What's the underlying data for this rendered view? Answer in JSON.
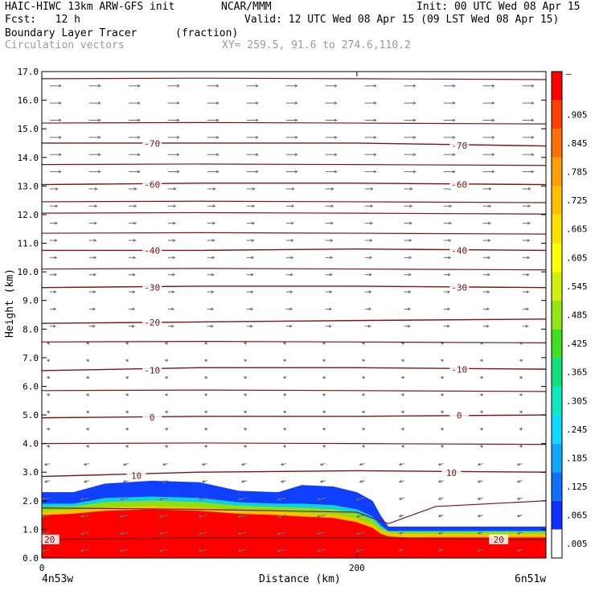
{
  "header": {
    "model": "HAIC-HIWC 13km ARW-GFS init",
    "org": "NCAR/MMM",
    "init": "Init: 00 UTC Wed 08 Apr 15",
    "fcst": "Fcst:   12 h",
    "valid": "Valid: 12 UTC Wed 08 Apr 15 (09 LST Wed 08 Apr 15)",
    "field": "Boundary Layer Tracer",
    "units": "(fraction)",
    "overlay": "Circulation vectors",
    "xy": "XY= 259.5, 91.6 to 274.6,110.2"
  },
  "chart_data": {
    "type": "heatmap",
    "description_fields": [
      "boundary layer tracer (fraction)",
      "temperature contours",
      "circulation vectors"
    ],
    "xlabel": "Distance (km)",
    "ylabel": "Height (km)",
    "xlim": [
      0,
      320
    ],
    "ylim": [
      0.0,
      17.0
    ],
    "x_ticks": [
      {
        "value": 0,
        "label": "0"
      },
      {
        "value": 200,
        "label": "200"
      }
    ],
    "x_end_labels": {
      "left": "4n53w",
      "right": "6n51w"
    },
    "y_ticks": [
      "0.0",
      "1.0",
      "2.0",
      "3.0",
      "4.0",
      "5.0",
      "6.0",
      "7.0",
      "8.0",
      "9.0",
      "10.0",
      "11.0",
      "12.0",
      "13.0",
      "14.0",
      "15.0",
      "16.0",
      "17.0"
    ],
    "colorbar": {
      "labels": [
        ".005",
        ".065",
        ".125",
        ".185",
        ".245",
        ".305",
        ".365",
        ".425",
        ".485",
        ".545",
        ".605",
        ".665",
        ".725",
        ".785",
        ".845",
        ".905"
      ],
      "top_label": "–",
      "colors": [
        "#ffffff",
        "#1030ff",
        "#1070ff",
        "#10a8ff",
        "#10d8ff",
        "#10e8c0",
        "#10e080",
        "#40e020",
        "#90e810",
        "#d0f010",
        "#ffff00",
        "#ffe000",
        "#ffc000",
        "#ffa000",
        "#ff7000",
        "#ff4000",
        "#ff0000"
      ]
    },
    "tracer_profile": {
      "x_km": [
        0,
        20,
        40,
        70,
        100,
        125,
        150,
        165,
        185,
        200,
        210,
        215,
        220,
        232,
        260,
        300,
        320
      ],
      "top_km": [
        2.3,
        2.3,
        2.6,
        2.7,
        2.65,
        2.35,
        2.3,
        2.55,
        2.5,
        2.3,
        2.0,
        1.5,
        1.1,
        1.1,
        1.1,
        1.1,
        1.1
      ],
      "green_km": [
        1.9,
        1.9,
        2.1,
        2.15,
        2.1,
        1.95,
        1.9,
        1.9,
        1.85,
        1.7,
        1.45,
        1.15,
        0.95,
        0.95,
        0.95,
        0.95,
        0.95
      ],
      "red_km": [
        1.5,
        1.55,
        1.65,
        1.7,
        1.65,
        1.55,
        1.5,
        1.45,
        1.4,
        1.25,
        1.05,
        0.85,
        0.75,
        0.72,
        0.72,
        0.72,
        0.72
      ]
    },
    "contours": [
      {
        "label": "-70",
        "label_x": [
          70,
          265
        ],
        "heights": [
          14.5,
          14.5,
          14.5,
          14.4
        ]
      },
      {
        "label": "-60",
        "label_x": [
          70,
          265
        ],
        "heights": [
          13.05,
          13.1,
          13.1,
          13.05
        ]
      },
      {
        "label": "-40",
        "label_x": [
          70,
          265
        ],
        "heights": [
          10.75,
          10.75,
          10.8,
          10.75
        ]
      },
      {
        "label": "-30",
        "label_x": [
          70,
          265
        ],
        "heights": [
          9.45,
          9.5,
          9.5,
          9.45
        ]
      },
      {
        "label": "-20",
        "label_x": [
          70
        ],
        "heights": [
          8.2,
          8.25,
          8.3,
          8.35
        ]
      },
      {
        "label": "-10",
        "label_x": [
          70,
          265
        ],
        "heights": [
          6.55,
          6.65,
          6.65,
          6.6
        ]
      },
      {
        "label": "0",
        "label_x": [
          70,
          265
        ],
        "heights": [
          4.9,
          4.95,
          4.95,
          5.0
        ]
      },
      {
        "label": "10",
        "label_x": [
          60,
          260
        ],
        "heights": [
          2.85,
          3.0,
          3.05,
          3.0
        ]
      },
      {
        "label": "20",
        "label_x": [
          5,
          290
        ],
        "heights": [
          0.65,
          0.7,
          0.7,
          0.65
        ]
      }
    ],
    "unlabeled_contours": [
      16.75,
      15.2,
      13.75,
      12.45,
      12.05,
      11.35,
      10.1,
      7.55,
      5.85,
      4.0
    ],
    "grid": false
  }
}
